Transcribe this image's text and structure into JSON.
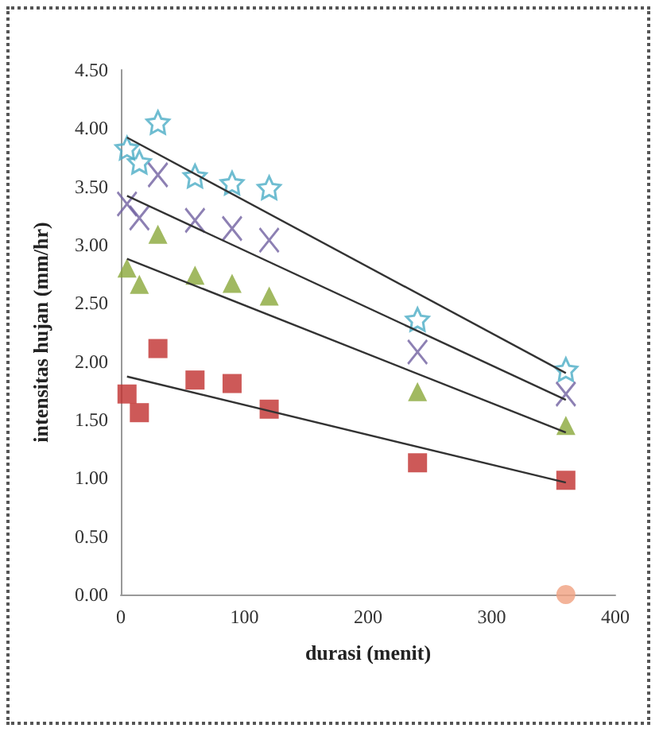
{
  "chart_data": {
    "type": "scatter",
    "xlabel": "durasi (menit)",
    "ylabel": "intensitas hujan (mm/hr)",
    "x": [
      5,
      15,
      30,
      60,
      90,
      120,
      240,
      360
    ],
    "xlim": [
      0,
      400
    ],
    "xticks": [
      0,
      100,
      200,
      300,
      400
    ],
    "ylim": [
      0,
      4.5
    ],
    "yticks": [
      {
        "value": 0,
        "label": "0.00"
      },
      {
        "value": 0.5,
        "label": "0.50"
      },
      {
        "value": 1,
        "label": "1.00"
      },
      {
        "value": 1.5,
        "label": "1.50"
      },
      {
        "value": 2,
        "label": "2.00"
      },
      {
        "value": 2.5,
        "label": "2.50"
      },
      {
        "value": 3,
        "label": "3.00"
      },
      {
        "value": 3.5,
        "label": "3.50"
      },
      {
        "value": 4,
        "label": "4.00"
      },
      {
        "value": 4.5,
        "label": "4.50"
      }
    ],
    "grid": false,
    "series": [
      {
        "color": "#4bacc6",
        "marker": "star",
        "values": [
          3.83,
          3.71,
          4.05,
          3.59,
          3.53,
          3.49,
          2.36,
          1.93
        ]
      },
      {
        "color": "#7060a0",
        "marker": "cross",
        "values": [
          3.35,
          3.23,
          3.6,
          3.21,
          3.14,
          3.04,
          2.08,
          1.72
        ]
      },
      {
        "color": "#8aa83a",
        "marker": "triangle",
        "values": [
          2.8,
          2.66,
          3.09,
          2.74,
          2.67,
          2.56,
          1.74,
          1.45
        ]
      },
      {
        "color": "#c0302e",
        "marker": "square",
        "values": [
          1.72,
          1.56,
          2.11,
          1.84,
          1.81,
          1.59,
          1.13,
          0.98
        ]
      },
      {
        "color": "#f0a080",
        "marker": "circle",
        "values": [
          null,
          null,
          null,
          null,
          null,
          null,
          null,
          0
        ]
      },
      {
        "type": "line",
        "color": "#333333",
        "marker": "none",
        "values": [
          3.92,
          null,
          null,
          null,
          null,
          null,
          null,
          1.9
        ]
      },
      {
        "type": "line",
        "color": "#333333",
        "marker": "none",
        "values": [
          3.42,
          null,
          null,
          null,
          null,
          null,
          null,
          1.67
        ]
      },
      {
        "type": "line",
        "color": "#333333",
        "marker": "none",
        "values": [
          2.88,
          null,
          null,
          null,
          null,
          null,
          null,
          1.39
        ]
      },
      {
        "type": "line",
        "color": "#333333",
        "marker": "none",
        "values": [
          1.87,
          null,
          null,
          null,
          null,
          null,
          null,
          0.96
        ]
      }
    ]
  }
}
